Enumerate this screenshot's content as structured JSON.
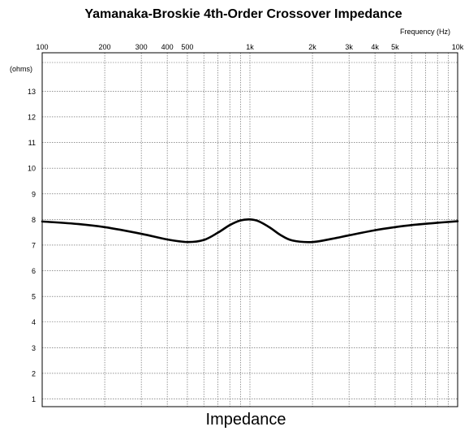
{
  "chart_data": {
    "type": "line",
    "title": "Yamanaka-Broskie 4th-Order Crossover Impedance",
    "xlabel": "Frequency   (Hz)",
    "ylabel": "(ohms)",
    "caption": "Impedance",
    "x_scale": "log",
    "xlim": [
      100,
      10000
    ],
    "ylim": [
      0.7,
      14.5
    ],
    "grid": true,
    "x_ticks": [
      {
        "value": 100,
        "label": "100"
      },
      {
        "value": 200,
        "label": "200"
      },
      {
        "value": 300,
        "label": "300"
      },
      {
        "value": 400,
        "label": "400"
      },
      {
        "value": 500,
        "label": "500"
      },
      {
        "value": 1000,
        "label": "1k"
      },
      {
        "value": 2000,
        "label": "2k"
      },
      {
        "value": 3000,
        "label": "3k"
      },
      {
        "value": 4000,
        "label": "4k"
      },
      {
        "value": 5000,
        "label": "5k"
      },
      {
        "value": 10000,
        "label": "10k"
      }
    ],
    "x_minor_ticks": [
      600,
      700,
      800,
      900,
      6000,
      7000,
      8000,
      9000
    ],
    "y_ticks": [
      {
        "value": 1,
        "label": "1"
      },
      {
        "value": 2,
        "label": "2"
      },
      {
        "value": 3,
        "label": "3"
      },
      {
        "value": 4,
        "label": "4"
      },
      {
        "value": 5,
        "label": "5"
      },
      {
        "value": 6,
        "label": "6"
      },
      {
        "value": 7,
        "label": "7"
      },
      {
        "value": 8,
        "label": "8"
      },
      {
        "value": 9,
        "label": "9"
      },
      {
        "value": 10,
        "label": "10"
      },
      {
        "value": 11,
        "label": "11"
      },
      {
        "value": 12,
        "label": "12"
      },
      {
        "value": 13,
        "label": "13"
      }
    ],
    "series": [
      {
        "color": "#000000",
        "x": [
          100,
          150,
          200,
          300,
          400,
          500,
          600,
          700,
          800,
          900,
          1000,
          1100,
          1250,
          1400,
          1600,
          2000,
          2500,
          3000,
          4000,
          5000,
          6000,
          8000,
          10000
        ],
        "y": [
          7.92,
          7.82,
          7.7,
          7.44,
          7.22,
          7.12,
          7.2,
          7.48,
          7.78,
          7.96,
          8.0,
          7.93,
          7.68,
          7.4,
          7.18,
          7.12,
          7.25,
          7.38,
          7.58,
          7.7,
          7.78,
          7.87,
          7.93
        ]
      }
    ]
  }
}
